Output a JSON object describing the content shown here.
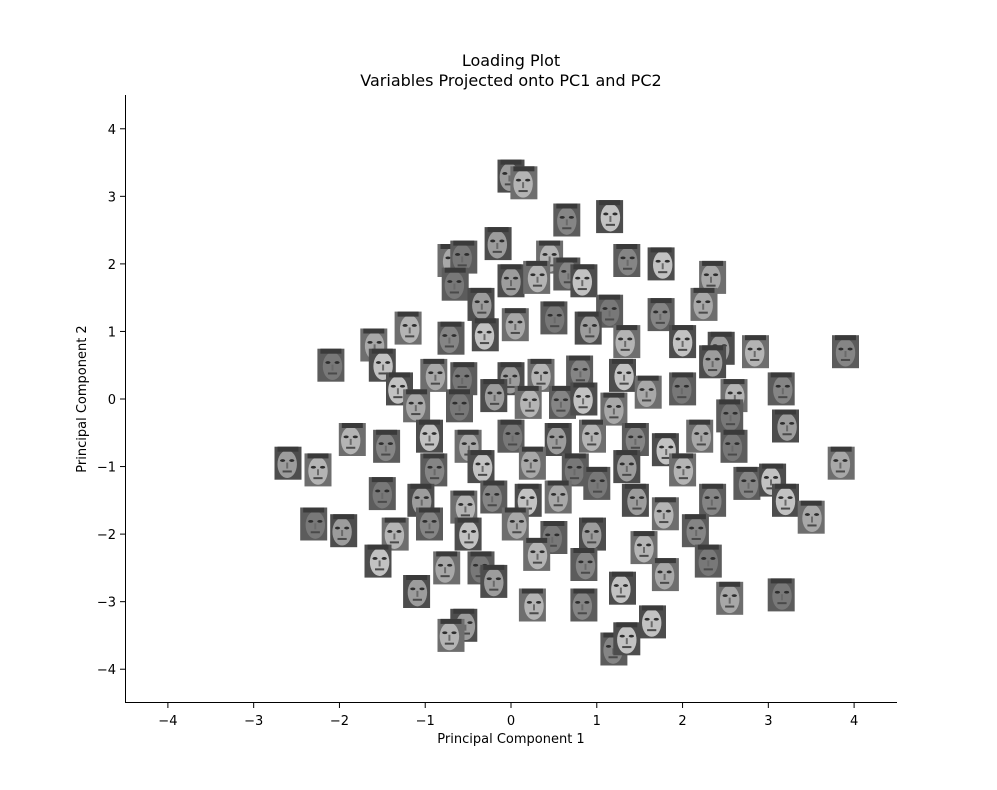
{
  "chart_data": {
    "type": "scatter",
    "marker": "face-thumbnail",
    "title": "Loading Plot",
    "subtitle": "Variables Projected onto PC1 and PC2",
    "xlabel": "Principal Component 1",
    "ylabel": "Principal Component 2",
    "xlim": [
      -4.5,
      4.5
    ],
    "ylim": [
      -4.5,
      4.5
    ],
    "xticks": [
      -4,
      -3,
      -2,
      -1,
      0,
      1,
      2,
      3,
      4
    ],
    "yticks": [
      -4,
      -3,
      -2,
      -1,
      0,
      1,
      2,
      3,
      4
    ],
    "xtick_labels": [
      "−4",
      "−3",
      "−2",
      "−1",
      "0",
      "1",
      "2",
      "3",
      "4"
    ],
    "ytick_labels": [
      "−4",
      "−3",
      "−2",
      "−1",
      "0",
      "1",
      "2",
      "3",
      "4"
    ],
    "grid": false,
    "legend": "none",
    "spines": "left-bottom",
    "points": [
      {
        "x": 0.0,
        "y": 3.3
      },
      {
        "x": 0.15,
        "y": 3.2
      },
      {
        "x": 0.65,
        "y": 2.65
      },
      {
        "x": 1.15,
        "y": 2.7
      },
      {
        "x": -0.7,
        "y": 2.05
      },
      {
        "x": -0.55,
        "y": 2.1
      },
      {
        "x": -0.15,
        "y": 2.3
      },
      {
        "x": 0.45,
        "y": 2.1
      },
      {
        "x": 1.35,
        "y": 2.05
      },
      {
        "x": 1.75,
        "y": 2.0
      },
      {
        "x": 2.35,
        "y": 1.8
      },
      {
        "x": -0.65,
        "y": 1.7
      },
      {
        "x": 0.0,
        "y": 1.75
      },
      {
        "x": 0.3,
        "y": 1.8
      },
      {
        "x": 0.65,
        "y": 1.85
      },
      {
        "x": 0.85,
        "y": 1.75
      },
      {
        "x": 2.25,
        "y": 1.4
      },
      {
        "x": 1.15,
        "y": 1.3
      },
      {
        "x": -0.35,
        "y": 1.4
      },
      {
        "x": -1.2,
        "y": 1.05
      },
      {
        "x": -0.7,
        "y": 0.9
      },
      {
        "x": -0.3,
        "y": 0.95
      },
      {
        "x": 0.05,
        "y": 1.1
      },
      {
        "x": 0.5,
        "y": 1.2
      },
      {
        "x": 0.9,
        "y": 1.05
      },
      {
        "x": 1.35,
        "y": 0.85
      },
      {
        "x": 1.75,
        "y": 1.25
      },
      {
        "x": 2.0,
        "y": 0.85
      },
      {
        "x": -1.6,
        "y": 0.8
      },
      {
        "x": -2.1,
        "y": 0.5
      },
      {
        "x": 2.45,
        "y": 0.75
      },
      {
        "x": 2.85,
        "y": 0.7
      },
      {
        "x": 3.9,
        "y": 0.7
      },
      {
        "x": -1.5,
        "y": 0.5
      },
      {
        "x": -0.9,
        "y": 0.35
      },
      {
        "x": -0.55,
        "y": 0.3
      },
      {
        "x": 0.0,
        "y": 0.3
      },
      {
        "x": 0.35,
        "y": 0.35
      },
      {
        "x": 0.8,
        "y": 0.4
      },
      {
        "x": 1.3,
        "y": 0.35
      },
      {
        "x": 1.6,
        "y": 0.1
      },
      {
        "x": 2.0,
        "y": 0.15
      },
      {
        "x": 2.35,
        "y": 0.55
      },
      {
        "x": 2.6,
        "y": 0.05
      },
      {
        "x": 3.15,
        "y": 0.15
      },
      {
        "x": -1.3,
        "y": 0.15
      },
      {
        "x": -1.1,
        "y": -0.1
      },
      {
        "x": -0.6,
        "y": -0.1
      },
      {
        "x": -0.2,
        "y": 0.05
      },
      {
        "x": 0.2,
        "y": -0.05
      },
      {
        "x": 0.6,
        "y": -0.05
      },
      {
        "x": 0.85,
        "y": 0.0
      },
      {
        "x": 1.2,
        "y": -0.15
      },
      {
        "x": 2.55,
        "y": -0.25
      },
      {
        "x": 3.2,
        "y": -0.4
      },
      {
        "x": -1.85,
        "y": -0.6
      },
      {
        "x": -1.45,
        "y": -0.7
      },
      {
        "x": -0.95,
        "y": -0.55
      },
      {
        "x": -0.5,
        "y": -0.7
      },
      {
        "x": 0.0,
        "y": -0.55
      },
      {
        "x": 0.55,
        "y": -0.6
      },
      {
        "x": 0.95,
        "y": -0.55
      },
      {
        "x": 1.45,
        "y": -0.6
      },
      {
        "x": 1.8,
        "y": -0.75
      },
      {
        "x": 2.2,
        "y": -0.55
      },
      {
        "x": 2.6,
        "y": -0.7
      },
      {
        "x": -2.6,
        "y": -0.95
      },
      {
        "x": -2.25,
        "y": -1.05
      },
      {
        "x": -0.9,
        "y": -1.05
      },
      {
        "x": -0.35,
        "y": -1.0
      },
      {
        "x": 0.25,
        "y": -0.95
      },
      {
        "x": 0.75,
        "y": -1.05
      },
      {
        "x": 1.35,
        "y": -1.0
      },
      {
        "x": 2.0,
        "y": -1.05
      },
      {
        "x": 2.75,
        "y": -1.25
      },
      {
        "x": 3.05,
        "y": -1.2
      },
      {
        "x": 3.85,
        "y": -0.95
      },
      {
        "x": -1.5,
        "y": -1.4
      },
      {
        "x": -1.05,
        "y": -1.5
      },
      {
        "x": -0.55,
        "y": -1.6
      },
      {
        "x": -0.2,
        "y": -1.45
      },
      {
        "x": 0.2,
        "y": -1.5
      },
      {
        "x": 0.55,
        "y": -1.45
      },
      {
        "x": 1.0,
        "y": -1.25
      },
      {
        "x": 1.45,
        "y": -1.5
      },
      {
        "x": 1.8,
        "y": -1.7
      },
      {
        "x": 2.35,
        "y": -1.5
      },
      {
        "x": 3.2,
        "y": -1.5
      },
      {
        "x": 3.5,
        "y": -1.75
      },
      {
        "x": -2.3,
        "y": -1.85
      },
      {
        "x": -1.95,
        "y": -1.95
      },
      {
        "x": -1.35,
        "y": -2.0
      },
      {
        "x": -0.95,
        "y": -1.85
      },
      {
        "x": -0.5,
        "y": -2.0
      },
      {
        "x": 0.05,
        "y": -1.85
      },
      {
        "x": 0.5,
        "y": -2.05
      },
      {
        "x": 0.95,
        "y": -2.0
      },
      {
        "x": 1.55,
        "y": -2.2
      },
      {
        "x": 2.15,
        "y": -1.95
      },
      {
        "x": -1.55,
        "y": -2.4
      },
      {
        "x": -0.75,
        "y": -2.5
      },
      {
        "x": -0.35,
        "y": -2.5
      },
      {
        "x": -0.2,
        "y": -2.7
      },
      {
        "x": 0.3,
        "y": -2.3
      },
      {
        "x": 0.85,
        "y": -2.45
      },
      {
        "x": 1.3,
        "y": -2.8
      },
      {
        "x": 1.8,
        "y": -2.6
      },
      {
        "x": 2.3,
        "y": -2.4
      },
      {
        "x": -1.1,
        "y": -2.85
      },
      {
        "x": 0.25,
        "y": -3.05
      },
      {
        "x": 0.85,
        "y": -3.05
      },
      {
        "x": 1.65,
        "y": -3.3
      },
      {
        "x": 2.55,
        "y": -2.95
      },
      {
        "x": 3.15,
        "y": -2.9
      },
      {
        "x": -0.55,
        "y": -3.35
      },
      {
        "x": -0.7,
        "y": -3.5
      },
      {
        "x": 1.2,
        "y": -3.7
      },
      {
        "x": 1.35,
        "y": -3.55
      }
    ]
  },
  "colors": {
    "axis": "#000000",
    "text": "#000000",
    "background": "#ffffff",
    "face_dark": "#3c3c3c",
    "face_mid": "#8a8a8a",
    "face_light": "#c8c8c8"
  }
}
